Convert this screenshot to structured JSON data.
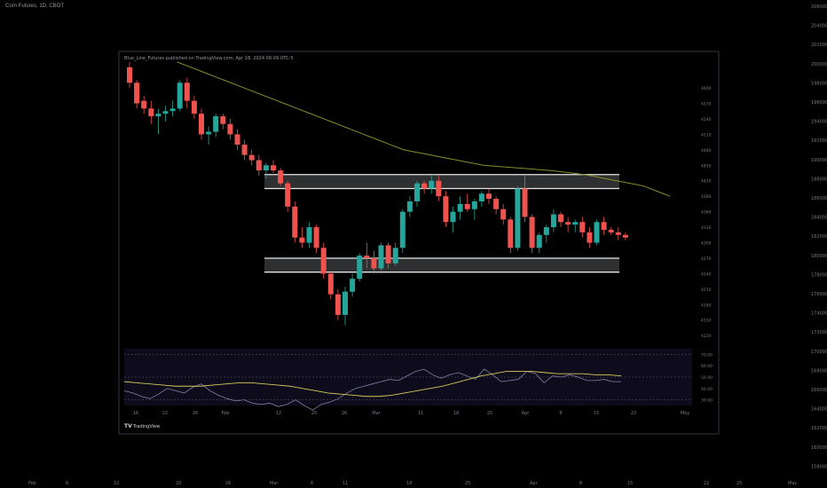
{
  "symbol_title": "Corn Futures, 1D, CBOT",
  "published_note": "Blue_Line_Futures published on TradingView.com, Apr 18, 2024 09:09 UTC-5",
  "brand": "TradingView",
  "colors": {
    "background": "#000000",
    "panel_border": "#2a2e39",
    "up": "#26a69a",
    "down": "#ef5350",
    "ma": "#8b8b2f",
    "zone_fill": "#d1d4dc",
    "zone_edge": "#e6e6e6",
    "rsi": "#7e82a8",
    "rsi_ma": "#d4c95a"
  },
  "outer_axis": {
    "y_labels": [
      "206000",
      "204000",
      "202000",
      "200000",
      "198000",
      "196000",
      "194000",
      "192000",
      "190000",
      "188000",
      "186000",
      "184000",
      "182000",
      "180000",
      "178000",
      "176000",
      "174000",
      "172000",
      "170000",
      "168000",
      "166000",
      "164000",
      "162000",
      "160000",
      "158000"
    ],
    "x_labels": [
      "Feb",
      "6",
      "12",
      "20",
      "26",
      "Mar",
      "6",
      "11",
      "18",
      "25",
      "Apr",
      "8",
      "15",
      "22",
      "25",
      "May"
    ]
  },
  "chart_data": {
    "type": "candlestick",
    "price_axis_labels": [
      "4600",
      "4570",
      "4540",
      "4510",
      "4480",
      "4450",
      "4420",
      "4390",
      "4360",
      "4330",
      "4300",
      "4270",
      "4240",
      "4210",
      "4180",
      "4150",
      "4120"
    ],
    "price_ylim": [
      4110,
      4650
    ],
    "x_labels": [
      "16",
      "22",
      "26",
      "Feb",
      "12",
      "20",
      "26",
      "Mar",
      "11",
      "18",
      "25",
      "Apr",
      "8",
      "15",
      "22",
      "May"
    ],
    "candles": [
      {
        "o": 4640,
        "h": 4650,
        "l": 4600,
        "c": 4610
      },
      {
        "o": 4610,
        "h": 4615,
        "l": 4560,
        "c": 4570
      },
      {
        "o": 4575,
        "h": 4585,
        "l": 4550,
        "c": 4560
      },
      {
        "o": 4560,
        "h": 4575,
        "l": 4530,
        "c": 4545
      },
      {
        "o": 4545,
        "h": 4560,
        "l": 4510,
        "c": 4550
      },
      {
        "o": 4550,
        "h": 4565,
        "l": 4535,
        "c": 4555
      },
      {
        "o": 4555,
        "h": 4575,
        "l": 4545,
        "c": 4560
      },
      {
        "o": 4560,
        "h": 4615,
        "l": 4555,
        "c": 4610
      },
      {
        "o": 4610,
        "h": 4620,
        "l": 4560,
        "c": 4575
      },
      {
        "o": 4575,
        "h": 4585,
        "l": 4540,
        "c": 4550
      },
      {
        "o": 4550,
        "h": 4560,
        "l": 4500,
        "c": 4510
      },
      {
        "o": 4510,
        "h": 4525,
        "l": 4490,
        "c": 4515
      },
      {
        "o": 4515,
        "h": 4550,
        "l": 4505,
        "c": 4545
      },
      {
        "o": 4545,
        "h": 4550,
        "l": 4520,
        "c": 4530
      },
      {
        "o": 4530,
        "h": 4540,
        "l": 4500,
        "c": 4510
      },
      {
        "o": 4510,
        "h": 4520,
        "l": 4480,
        "c": 4490
      },
      {
        "o": 4490,
        "h": 4500,
        "l": 4460,
        "c": 4470
      },
      {
        "o": 4470,
        "h": 4480,
        "l": 4450,
        "c": 4460
      },
      {
        "o": 4460,
        "h": 4470,
        "l": 4430,
        "c": 4440
      },
      {
        "o": 4440,
        "h": 4455,
        "l": 4425,
        "c": 4450
      },
      {
        "o": 4450,
        "h": 4460,
        "l": 4435,
        "c": 4440
      },
      {
        "o": 4440,
        "h": 4445,
        "l": 4410,
        "c": 4415
      },
      {
        "o": 4415,
        "h": 4420,
        "l": 4360,
        "c": 4370
      },
      {
        "o": 4370,
        "h": 4380,
        "l": 4300,
        "c": 4310
      },
      {
        "o": 4310,
        "h": 4330,
        "l": 4290,
        "c": 4300
      },
      {
        "o": 4300,
        "h": 4340,
        "l": 4290,
        "c": 4330
      },
      {
        "o": 4330,
        "h": 4335,
        "l": 4280,
        "c": 4290
      },
      {
        "o": 4290,
        "h": 4300,
        "l": 4230,
        "c": 4240
      },
      {
        "o": 4240,
        "h": 4245,
        "l": 4190,
        "c": 4200
      },
      {
        "o": 4200,
        "h": 4210,
        "l": 4150,
        "c": 4160
      },
      {
        "o": 4160,
        "h": 4215,
        "l": 4140,
        "c": 4205
      },
      {
        "o": 4205,
        "h": 4240,
        "l": 4195,
        "c": 4230
      },
      {
        "o": 4230,
        "h": 4280,
        "l": 4225,
        "c": 4275
      },
      {
        "o": 4275,
        "h": 4300,
        "l": 4250,
        "c": 4270
      },
      {
        "o": 4270,
        "h": 4285,
        "l": 4240,
        "c": 4250
      },
      {
        "o": 4250,
        "h": 4300,
        "l": 4240,
        "c": 4295
      },
      {
        "o": 4295,
        "h": 4300,
        "l": 4250,
        "c": 4260
      },
      {
        "o": 4260,
        "h": 4300,
        "l": 4255,
        "c": 4290
      },
      {
        "o": 4290,
        "h": 4365,
        "l": 4280,
        "c": 4360
      },
      {
        "o": 4360,
        "h": 4390,
        "l": 4350,
        "c": 4380
      },
      {
        "o": 4380,
        "h": 4420,
        "l": 4370,
        "c": 4415
      },
      {
        "o": 4415,
        "h": 4420,
        "l": 4395,
        "c": 4405
      },
      {
        "o": 4405,
        "h": 4430,
        "l": 4395,
        "c": 4420
      },
      {
        "o": 4420,
        "h": 4430,
        "l": 4380,
        "c": 4390
      },
      {
        "o": 4390,
        "h": 4400,
        "l": 4330,
        "c": 4340
      },
      {
        "o": 4340,
        "h": 4370,
        "l": 4320,
        "c": 4360
      },
      {
        "o": 4360,
        "h": 4390,
        "l": 4345,
        "c": 4375
      },
      {
        "o": 4375,
        "h": 4395,
        "l": 4360,
        "c": 4365
      },
      {
        "o": 4365,
        "h": 4385,
        "l": 4345,
        "c": 4380
      },
      {
        "o": 4380,
        "h": 4400,
        "l": 4370,
        "c": 4395
      },
      {
        "o": 4395,
        "h": 4405,
        "l": 4375,
        "c": 4385
      },
      {
        "o": 4385,
        "h": 4390,
        "l": 4355,
        "c": 4365
      },
      {
        "o": 4365,
        "h": 4375,
        "l": 4335,
        "c": 4345
      },
      {
        "o": 4345,
        "h": 4350,
        "l": 4280,
        "c": 4290
      },
      {
        "o": 4290,
        "h": 4410,
        "l": 4285,
        "c": 4405
      },
      {
        "o": 4405,
        "h": 4430,
        "l": 4340,
        "c": 4350
      },
      {
        "o": 4350,
        "h": 4355,
        "l": 4280,
        "c": 4290
      },
      {
        "o": 4290,
        "h": 4320,
        "l": 4280,
        "c": 4315
      },
      {
        "o": 4315,
        "h": 4335,
        "l": 4300,
        "c": 4330
      },
      {
        "o": 4330,
        "h": 4365,
        "l": 4320,
        "c": 4355
      },
      {
        "o": 4355,
        "h": 4360,
        "l": 4330,
        "c": 4340
      },
      {
        "o": 4340,
        "h": 4350,
        "l": 4320,
        "c": 4335
      },
      {
        "o": 4335,
        "h": 4345,
        "l": 4320,
        "c": 4340
      },
      {
        "o": 4340,
        "h": 4350,
        "l": 4310,
        "c": 4320
      },
      {
        "o": 4320,
        "h": 4330,
        "l": 4290,
        "c": 4300
      },
      {
        "o": 4300,
        "h": 4345,
        "l": 4295,
        "c": 4340
      },
      {
        "o": 4340,
        "h": 4350,
        "l": 4315,
        "c": 4325
      },
      {
        "o": 4325,
        "h": 4330,
        "l": 4315,
        "c": 4320
      },
      {
        "o": 4320,
        "h": 4330,
        "l": 4305,
        "c": 4315
      },
      {
        "o": 4315,
        "h": 4320,
        "l": 4305,
        "c": 4310
      }
    ],
    "moving_average": [
      4650,
      4640,
      4630,
      4620,
      4610,
      4600,
      4590,
      4580,
      4570,
      4560,
      4550,
      4540,
      4530,
      4520,
      4510,
      4500,
      4490,
      4480,
      4475,
      4470,
      4465,
      4460,
      4455,
      4450,
      4448,
      4446,
      4444,
      4442,
      4440,
      4437,
      4434,
      4430,
      4425,
      4420,
      4415,
      4410,
      4400,
      4390
    ],
    "zones": [
      {
        "top": 4432,
        "bottom": 4405
      },
      {
        "top": 4270,
        "bottom": 4243
      }
    ],
    "rsi": {
      "axis_labels": [
        "70.00",
        "60.00",
        "50.00",
        "40.00",
        "30.00"
      ],
      "ylim": [
        25,
        75
      ],
      "levels": [
        70,
        50,
        30
      ],
      "line": [
        38,
        36,
        33,
        31,
        35,
        40,
        38,
        36,
        41,
        44,
        38,
        34,
        31,
        29,
        30,
        27,
        26,
        27,
        24,
        26,
        30,
        25,
        21,
        26,
        28,
        31,
        36,
        40,
        42,
        44,
        46,
        48,
        47,
        51,
        55,
        57,
        52,
        49,
        52,
        54,
        51,
        48,
        57,
        52,
        46,
        47,
        48,
        55,
        53,
        45,
        51,
        50,
        52,
        50,
        47,
        47,
        48,
        46,
        46
      ],
      "ma": [
        46,
        45,
        44,
        43,
        42,
        42,
        42,
        43,
        44,
        45,
        45,
        44,
        43,
        42,
        40,
        38,
        36,
        35,
        34,
        33,
        33,
        34,
        36,
        38,
        40,
        42,
        45,
        48,
        51,
        53,
        55,
        55,
        55,
        54,
        53,
        53,
        53,
        52,
        52,
        51
      ]
    }
  }
}
